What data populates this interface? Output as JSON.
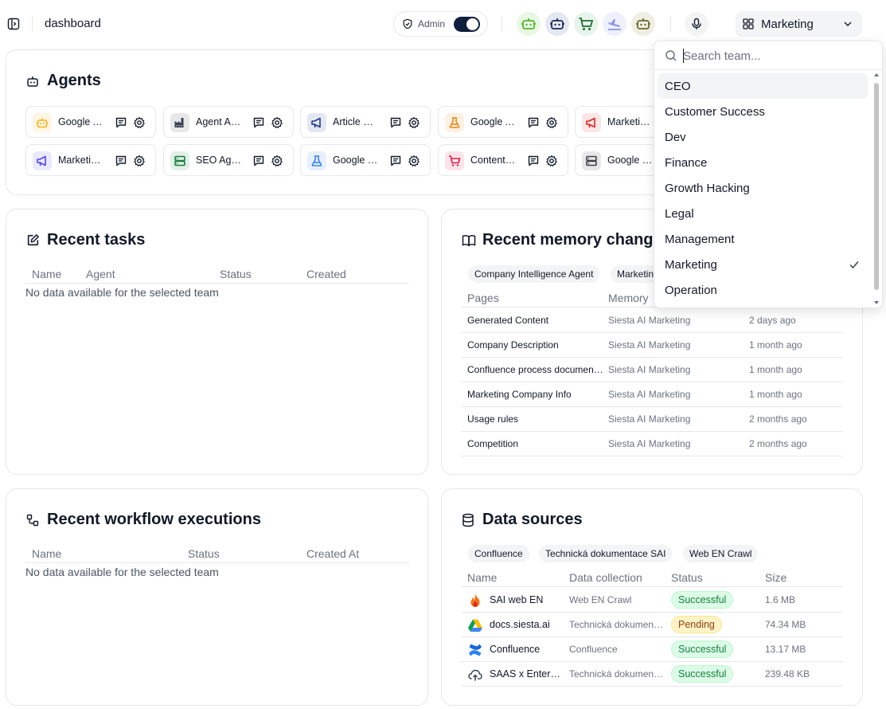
{
  "header": {
    "title": "dashboard",
    "admin_label": "Admin",
    "team_selected": "Marketing"
  },
  "agents_card": {
    "title": "Agents",
    "agents": [
      {
        "name": "Google Ads Agent",
        "icon": "robot-icon",
        "color": "#f5b31a"
      },
      {
        "name": "Agent Architect",
        "icon": "factory-icon",
        "color": "#374151"
      },
      {
        "name": "Article Reviewer",
        "icon": "megaphone-icon",
        "color": "#1e3a8a"
      },
      {
        "name": "Google Analytics",
        "icon": "flask-icon",
        "color": "#ea8a1a"
      },
      {
        "name": "Marketing Agent",
        "icon": "megaphone-icon",
        "color": "#dc2626"
      },
      {
        "name": "Marketing Researcher",
        "icon": "megaphone-icon",
        "color": "#4f46e5"
      },
      {
        "name": "SEO Agent",
        "icon": "server-icon",
        "color": "#15803d"
      },
      {
        "name": "Google Search Console",
        "icon": "flask-icon",
        "color": "#3b82f6"
      },
      {
        "name": "Content Creator",
        "icon": "cart-icon",
        "color": "#e11d48"
      },
      {
        "name": "Google Drive",
        "icon": "server-icon",
        "color": "#3f3f46"
      }
    ]
  },
  "tasks_card": {
    "title": "Recent tasks",
    "columns": [
      "Name",
      "Agent",
      "Status",
      "Created"
    ],
    "empty": "No data available for the selected team"
  },
  "memory_card": {
    "title": "Recent memory changes",
    "tags": [
      "Company Intelligence Agent",
      "Marketing"
    ],
    "columns": [
      "Pages",
      "Memory",
      ""
    ],
    "rows": [
      {
        "page": "Generated Content",
        "memory": "Siesta AI Marketing",
        "time": "2 days ago"
      },
      {
        "page": "Company Description",
        "memory": "Siesta AI Marketing",
        "time": "1 month ago"
      },
      {
        "page": "Confluence process documentation",
        "memory": "Siesta AI Marketing",
        "time": "1 month ago"
      },
      {
        "page": "Marketing Company Info",
        "memory": "Siesta AI Marketing",
        "time": "1 month ago"
      },
      {
        "page": "Usage rules",
        "memory": "Siesta AI Marketing",
        "time": "2 months ago"
      },
      {
        "page": "Competition",
        "memory": "Siesta AI Marketing",
        "time": "2 months ago"
      }
    ]
  },
  "workflow_card": {
    "title": "Recent workflow executions",
    "columns": [
      "Name",
      "Status",
      "Created At"
    ],
    "empty": "No data available for the selected team"
  },
  "datasources_card": {
    "title": "Data sources",
    "tags": [
      "Confluence",
      "Technická dokumentace SAI",
      "Web EN Crawl"
    ],
    "columns": [
      "Name",
      "Data collection",
      "Status",
      "Size"
    ],
    "rows": [
      {
        "name": "SAI web EN",
        "collection": "Web EN Crawl",
        "status": "Successful",
        "size": "1.6 MB",
        "icon": "fire-icon"
      },
      {
        "name": "docs.siesta.ai",
        "collection": "Technická dokumentace SAI",
        "status": "Pending",
        "size": "74.34 MB",
        "icon": "google-drive-icon"
      },
      {
        "name": "Confluence",
        "collection": "Confluence",
        "status": "Successful",
        "size": "13.17 MB",
        "icon": "confluence-icon"
      },
      {
        "name": "SAAS x Enterprise",
        "collection": "Technická dokumentace SAI",
        "status": "Successful",
        "size": "239.48 KB",
        "icon": "cloud-upload-icon"
      }
    ]
  },
  "team_dropdown": {
    "placeholder": "Search team...",
    "options": [
      "CEO",
      "Customer Success",
      "Dev",
      "Finance",
      "Growth Hacking",
      "Legal",
      "Management",
      "Marketing",
      "Operation"
    ],
    "selected": "Marketing",
    "highlighted": "CEO"
  }
}
